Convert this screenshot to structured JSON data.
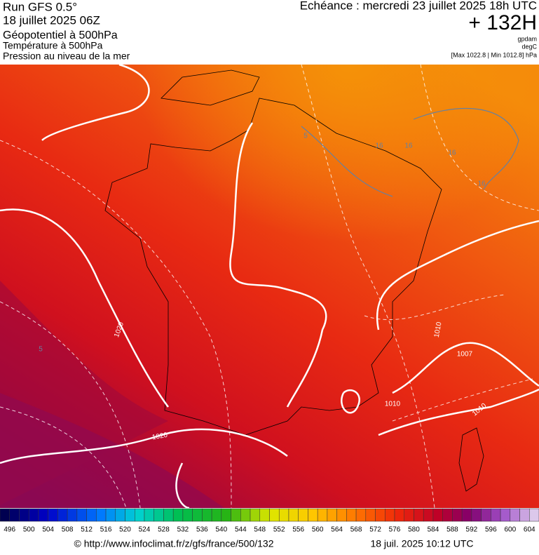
{
  "header": {
    "run": "Run GFS 0.5°",
    "date": "18 juillet 2025 06Z",
    "field1": "Géopotentiel à 500hPa",
    "field2": "Température à 500hPa",
    "field3": "Pression au niveau de la mer",
    "echeance": "Echéance : mercredi 23 juillet 2025 18h UTC",
    "lead": "+ 132H",
    "unit1": "gpdam",
    "unit2": "degC",
    "range": "[Max 1022.8 | Min 1012.8] hPa"
  },
  "map": {
    "labels": [
      "1020",
      "1020",
      "1010",
      "1010",
      "1010",
      "1007",
      "16",
      "16",
      "16",
      "16",
      "5",
      "5"
    ]
  },
  "scale": {
    "labels": [
      496,
      500,
      504,
      508,
      512,
      516,
      520,
      524,
      528,
      532,
      536,
      540,
      544,
      548,
      552,
      556,
      560,
      564,
      568,
      572,
      576,
      580,
      584,
      588,
      592,
      596,
      600,
      604
    ]
  },
  "footer": {
    "source": "© http://www.infoclimat.fr/z/gfs/france/500/132",
    "timestamp": "18 juil. 2025 10:12 UTC"
  }
}
